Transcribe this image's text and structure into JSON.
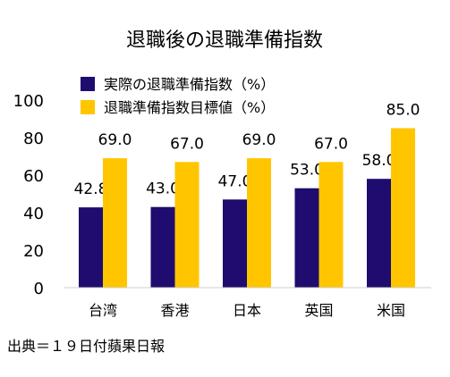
{
  "chart_data": {
    "type": "bar",
    "title": "退職後の退職準備指数",
    "categories": [
      "台湾",
      "香港",
      "日本",
      "英国",
      "米国"
    ],
    "series": [
      {
        "name": "実際の退職準備指数（%）",
        "color": "#1f0c6e",
        "values": [
          42.8,
          43.0,
          47.0,
          53.0,
          58.0
        ],
        "labels": [
          "42.8",
          "43.0",
          "47.0",
          "53.0",
          "58.0"
        ]
      },
      {
        "name": "退職準備指数目標値（%）",
        "color": "#ffc600",
        "values": [
          69.0,
          67.0,
          69.0,
          67.0,
          85.0
        ],
        "labels": [
          "69.0",
          "67.0",
          "69.0",
          "67.0",
          "85.0"
        ]
      }
    ],
    "ylim": [
      0,
      100
    ],
    "yticks": [
      "0",
      "20",
      "40",
      "60",
      "80",
      "100"
    ],
    "grid": false,
    "legend_position": "top-left"
  },
  "source_note": "出典＝１９日付蘋果日報"
}
